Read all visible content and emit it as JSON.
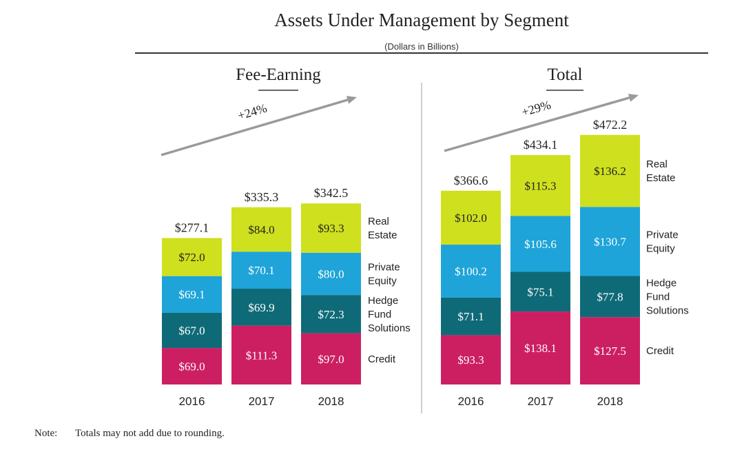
{
  "title": "Assets Under Management by Segment",
  "subtitle": "(Dollars in Billions)",
  "note": {
    "label": "Note:",
    "text": "Totals may not add due to rounding."
  },
  "colors": {
    "Real Estate": "#cfe01e",
    "Private Equity": "#1ea4d8",
    "Hedge Fund Solutions": "#0f6a78",
    "Credit": "#cc1f62",
    "arrow": "#9a9a9a"
  },
  "chart_data": [
    {
      "type": "bar",
      "stacked": true,
      "title": "Fee-Earning",
      "growth_label": "+24%",
      "categories": [
        "2016",
        "2017",
        "2018"
      ],
      "totals": [
        "$277.1",
        "$335.3",
        "$342.5"
      ],
      "series": [
        {
          "name": "Credit",
          "legend": [
            "Credit"
          ],
          "values": [
            69.0,
            111.3,
            97.0
          ],
          "labels": [
            "$69.0",
            "$111.3",
            "$97.0"
          ]
        },
        {
          "name": "Hedge Fund Solutions",
          "legend": [
            "Hedge",
            "Fund",
            "Solutions"
          ],
          "values": [
            67.0,
            69.9,
            72.3
          ],
          "labels": [
            "$67.0",
            "$69.9",
            "$72.3"
          ]
        },
        {
          "name": "Private Equity",
          "legend": [
            "Private",
            "Equity"
          ],
          "values": [
            69.1,
            70.1,
            80.0
          ],
          "labels": [
            "$69.1",
            "$70.1",
            "$80.0"
          ]
        },
        {
          "name": "Real Estate",
          "legend": [
            "Real",
            "Estate"
          ],
          "values": [
            72.0,
            84.0,
            93.3
          ],
          "labels": [
            "$72.0",
            "$84.0",
            "$93.3"
          ]
        }
      ]
    },
    {
      "type": "bar",
      "stacked": true,
      "title": "Total",
      "growth_label": "+29%",
      "categories": [
        "2016",
        "2017",
        "2018"
      ],
      "totals": [
        "$366.6",
        "$434.1",
        "$472.2"
      ],
      "series": [
        {
          "name": "Credit",
          "legend": [
            "Credit"
          ],
          "values": [
            93.3,
            138.1,
            127.5
          ],
          "labels": [
            "$93.3",
            "$138.1",
            "$127.5"
          ]
        },
        {
          "name": "Hedge Fund Solutions",
          "legend": [
            "Hedge",
            "Fund",
            "Solutions"
          ],
          "values": [
            71.1,
            75.1,
            77.8
          ],
          "labels": [
            "$71.1",
            "$75.1",
            "$77.8"
          ]
        },
        {
          "name": "Private Equity",
          "legend": [
            "Private",
            "Equity"
          ],
          "values": [
            100.2,
            105.6,
            130.7
          ],
          "labels": [
            "$100.2",
            "$105.6",
            "$130.7"
          ]
        },
        {
          "name": "Real Estate",
          "legend": [
            "Real",
            "Estate"
          ],
          "values": [
            102.0,
            115.3,
            136.2
          ],
          "labels": [
            "$102.0",
            "$115.3",
            "$136.2"
          ]
        }
      ]
    }
  ]
}
